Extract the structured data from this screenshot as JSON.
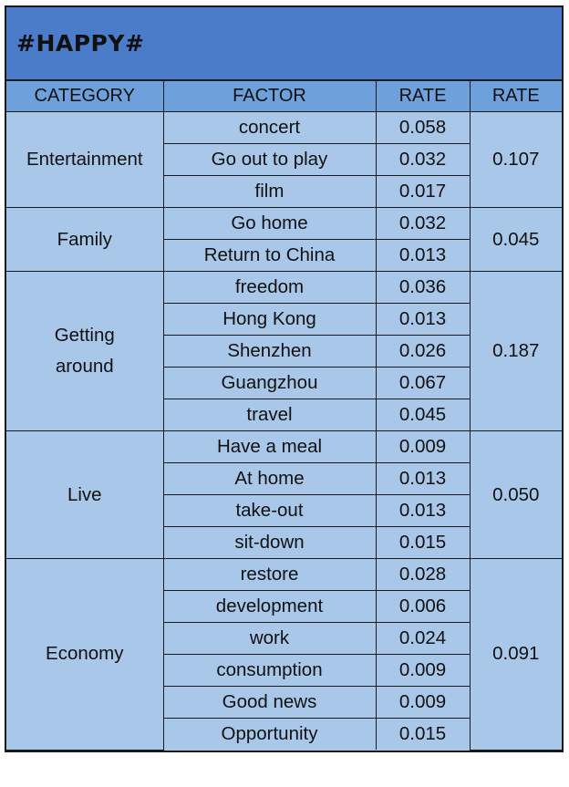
{
  "title": "#HAPPY#",
  "headers": [
    "CATEGORY",
    "FACTOR",
    "RATE",
    "RATE"
  ],
  "groups": [
    {
      "category": [
        "Entertainment"
      ],
      "total": "0.107",
      "rows": [
        {
          "factor": "concert",
          "rate": "0.058"
        },
        {
          "factor": "Go out to play",
          "rate": "0.032"
        },
        {
          "factor": "film",
          "rate": "0.017"
        }
      ]
    },
    {
      "category": [
        "Family"
      ],
      "total": "0.045",
      "rows": [
        {
          "factor": "Go home",
          "rate": "0.032"
        },
        {
          "factor": "Return to China",
          "rate": "0.013"
        }
      ]
    },
    {
      "category": [
        "Getting",
        "around"
      ],
      "total": "0.187",
      "rows": [
        {
          "factor": "freedom",
          "rate": "0.036"
        },
        {
          "factor": "Hong Kong",
          "rate": "0.013"
        },
        {
          "factor": "Shenzhen",
          "rate": "0.026"
        },
        {
          "factor": "Guangzhou",
          "rate": "0.067"
        },
        {
          "factor": "travel",
          "rate": "0.045"
        }
      ]
    },
    {
      "category": [
        "Live"
      ],
      "total": "0.050",
      "rows": [
        {
          "factor": "Have a meal",
          "rate": "0.009"
        },
        {
          "factor": "At home",
          "rate": "0.013"
        },
        {
          "factor": "take-out",
          "rate": "0.013"
        },
        {
          "factor": "sit-down",
          "rate": "0.015"
        }
      ]
    },
    {
      "category": [
        "Economy"
      ],
      "total": "0.091",
      "rows": [
        {
          "factor": "restore",
          "rate": "0.028"
        },
        {
          "factor": "development",
          "rate": "0.006"
        },
        {
          "factor": "work",
          "rate": "0.024"
        },
        {
          "factor": "consumption",
          "rate": "0.009"
        },
        {
          "factor": "Good news",
          "rate": "0.009"
        },
        {
          "factor": "Opportunity",
          "rate": "0.015"
        }
      ]
    }
  ],
  "colors": {
    "title_bg": "#4a7cc9",
    "header_bg": "#6ea1db",
    "cell_bg": "#a9c8e9",
    "border": "#1a1a1a"
  }
}
